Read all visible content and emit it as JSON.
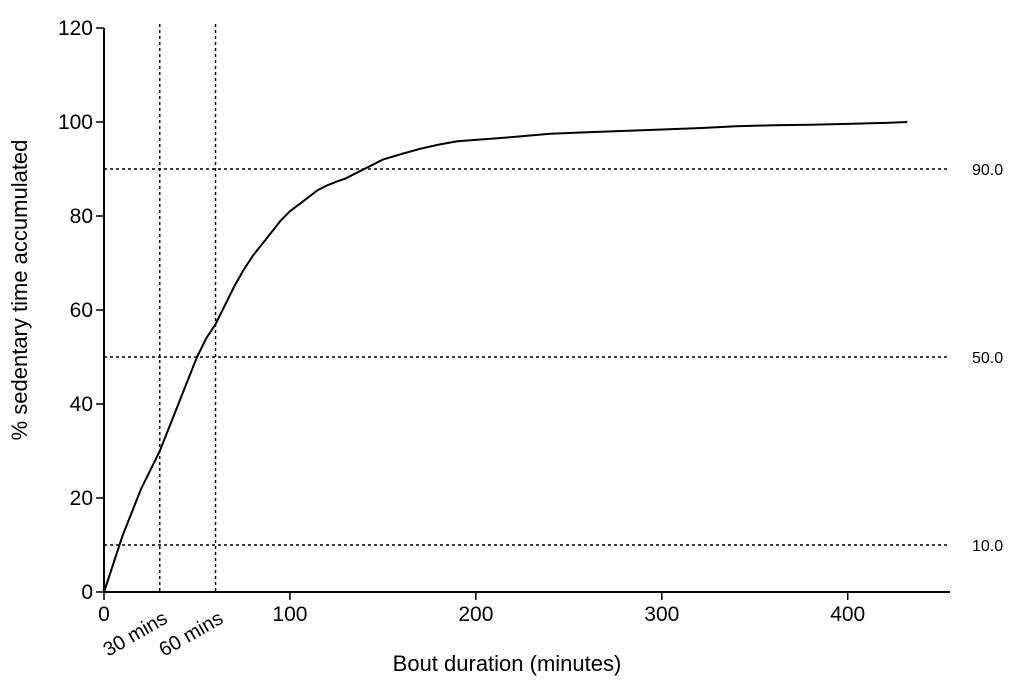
{
  "chart_data": {
    "type": "line",
    "title": "",
    "xlabel": "Bout duration (minutes)",
    "ylabel": "% sedentary time accumulated",
    "xlim": [
      0,
      455
    ],
    "ylim": [
      0,
      120
    ],
    "xticks": [
      0,
      100,
      200,
      300,
      400
    ],
    "yticks": [
      0,
      20,
      40,
      60,
      80,
      100,
      120
    ],
    "grid": false,
    "series": [
      {
        "x": [
          0,
          5,
          10,
          15,
          20,
          25,
          30,
          35,
          40,
          45,
          50,
          55,
          60,
          65,
          70,
          75,
          80,
          85,
          90,
          95,
          100,
          105,
          110,
          115,
          120,
          125,
          130,
          135,
          140,
          145,
          150,
          160,
          170,
          180,
          190,
          200,
          220,
          240,
          260,
          280,
          300,
          320,
          340,
          360,
          380,
          400,
          420,
          432
        ],
        "y": [
          0,
          6,
          12,
          17,
          22,
          26,
          30,
          35,
          40,
          45,
          50,
          54,
          57,
          61,
          65,
          68.5,
          71.5,
          74,
          76.5,
          79,
          81,
          82.5,
          84,
          85.5,
          86.5,
          87.3,
          88,
          89,
          90,
          91,
          92,
          93.2,
          94.3,
          95.2,
          95.9,
          96.2,
          96.8,
          97.5,
          97.8,
          98.1,
          98.4,
          98.7,
          99.1,
          99.3,
          99.4,
          99.6,
          99.8,
          100
        ]
      }
    ],
    "reference_lines": {
      "horizontal": [
        {
          "y": 10,
          "label": "10.0"
        },
        {
          "y": 50,
          "label": "50.0"
        },
        {
          "y": 90,
          "label": "90.0"
        }
      ],
      "vertical": [
        {
          "x": 30,
          "label": "30 mins"
        },
        {
          "x": 60,
          "label": "60 mins"
        }
      ]
    }
  }
}
